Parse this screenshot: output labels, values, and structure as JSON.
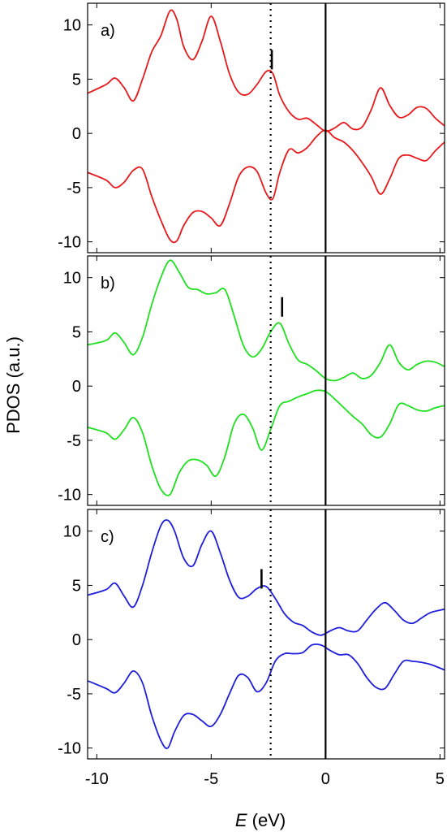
{
  "figure": {
    "ylabel": "PDOS (a.u.)",
    "xlabel_symbol": "E",
    "xlabel_unit": " (eV)"
  },
  "chart_data": [
    {
      "type": "line",
      "panel_label": "a)",
      "xlim": [
        -10.4,
        5.2
      ],
      "ylim": [
        -11,
        12
      ],
      "xticks": [
        -10,
        -5,
        0,
        5
      ],
      "yticks": [
        -10,
        -5,
        0,
        5,
        10
      ],
      "color": "#e8191b",
      "vline_solid_x": 0.0,
      "vline_dotted_x": -2.4,
      "marker": {
        "x": -2.35,
        "y": 6.8
      },
      "series": [
        {
          "x": [
            -10.4,
            -9.6,
            -9.2,
            -8.8,
            -8.4,
            -8.0,
            -7.6,
            -7.2,
            -6.8,
            -6.5,
            -6.2,
            -5.8,
            -5.4,
            -5.0,
            -4.6,
            -4.2,
            -3.8,
            -3.4,
            -3.0,
            -2.6,
            -2.3,
            -2.0,
            -1.6,
            -1.2,
            -0.8,
            -0.4,
            0.0,
            0.4,
            0.8,
            1.2,
            1.6,
            2.0,
            2.4,
            2.8,
            3.2,
            3.6,
            4.0,
            4.4,
            4.8,
            5.2
          ],
          "y": [
            3.7,
            4.5,
            5.1,
            4.2,
            3.0,
            5.0,
            7.5,
            9.0,
            11.3,
            10.5,
            8.0,
            6.8,
            8.5,
            10.8,
            8.5,
            5.5,
            3.8,
            3.6,
            4.5,
            5.7,
            5.5,
            3.5,
            2.0,
            1.3,
            1.4,
            0.8,
            0.2,
            0.5,
            1.0,
            0.4,
            0.6,
            2.2,
            4.2,
            2.6,
            1.5,
            1.7,
            2.4,
            2.3,
            1.4,
            0.7
          ]
        },
        {
          "x": [
            -10.4,
            -9.6,
            -9.2,
            -8.8,
            -8.4,
            -8.0,
            -7.6,
            -7.2,
            -6.8,
            -6.5,
            -6.2,
            -5.8,
            -5.4,
            -5.0,
            -4.6,
            -4.2,
            -3.8,
            -3.4,
            -3.0,
            -2.6,
            -2.3,
            -2.0,
            -1.6,
            -1.2,
            -0.8,
            -0.4,
            0.0,
            0.4,
            0.8,
            1.2,
            1.6,
            2.0,
            2.4,
            2.8,
            3.2,
            3.6,
            4.0,
            4.4,
            4.8,
            5.2
          ],
          "y": [
            -3.6,
            -4.3,
            -5.0,
            -4.5,
            -3.4,
            -3.3,
            -5.8,
            -8.0,
            -9.8,
            -9.9,
            -8.5,
            -7.3,
            -7.2,
            -7.8,
            -8.5,
            -6.5,
            -4.0,
            -3.1,
            -3.5,
            -5.5,
            -6.0,
            -3.6,
            -1.5,
            -1.8,
            -1.3,
            -0.3,
            0.3,
            -0.4,
            -0.8,
            -1.6,
            -2.7,
            -4.0,
            -5.6,
            -4.2,
            -2.3,
            -2.0,
            -2.3,
            -2.5,
            -1.6,
            -0.8
          ]
        }
      ]
    },
    {
      "type": "line",
      "panel_label": "b)",
      "xlim": [
        -10.4,
        5.2
      ],
      "ylim": [
        -11,
        12
      ],
      "xticks": [
        -10,
        -5,
        0,
        5
      ],
      "yticks": [
        -10,
        -5,
        0,
        5,
        10
      ],
      "color": "#1fe01f",
      "vline_solid_x": 0.0,
      "vline_dotted_x": -2.4,
      "marker": {
        "x": -1.9,
        "y": 7.3
      },
      "series": [
        {
          "x": [
            -10.4,
            -9.6,
            -9.2,
            -8.8,
            -8.4,
            -8.0,
            -7.6,
            -7.2,
            -6.8,
            -6.4,
            -6.0,
            -5.6,
            -5.2,
            -4.8,
            -4.4,
            -4.0,
            -3.6,
            -3.2,
            -2.8,
            -2.4,
            -2.0,
            -1.6,
            -1.2,
            -0.8,
            -0.4,
            0.0,
            0.4,
            0.8,
            1.2,
            1.6,
            2.0,
            2.4,
            2.8,
            3.2,
            3.6,
            4.0,
            4.4,
            4.8,
            5.2
          ],
          "y": [
            3.8,
            4.2,
            4.9,
            4.0,
            2.9,
            4.5,
            7.5,
            10.0,
            11.6,
            10.5,
            9.1,
            8.9,
            8.5,
            8.6,
            8.9,
            6.5,
            3.8,
            2.7,
            3.4,
            5.0,
            5.8,
            3.9,
            2.4,
            2.0,
            1.4,
            0.7,
            0.5,
            0.8,
            1.2,
            0.7,
            1.0,
            2.2,
            3.8,
            2.2,
            1.5,
            2.0,
            2.3,
            2.2,
            1.8
          ]
        },
        {
          "x": [
            -10.4,
            -9.6,
            -9.2,
            -8.8,
            -8.4,
            -8.0,
            -7.6,
            -7.2,
            -6.8,
            -6.4,
            -6.0,
            -5.6,
            -5.2,
            -4.8,
            -4.4,
            -4.0,
            -3.6,
            -3.2,
            -2.8,
            -2.4,
            -2.0,
            -1.6,
            -1.2,
            -0.8,
            -0.4,
            0.0,
            0.4,
            0.8,
            1.2,
            1.6,
            2.0,
            2.4,
            2.8,
            3.2,
            3.6,
            4.0,
            4.4,
            4.8,
            5.2
          ],
          "y": [
            -3.8,
            -4.3,
            -4.9,
            -4.0,
            -2.9,
            -4.3,
            -7.3,
            -9.5,
            -10.0,
            -8.0,
            -6.9,
            -6.8,
            -7.3,
            -8.3,
            -6.5,
            -3.5,
            -2.6,
            -3.8,
            -5.9,
            -4.0,
            -1.8,
            -1.4,
            -1.0,
            -0.7,
            -0.4,
            -0.5,
            -1.2,
            -2.0,
            -2.8,
            -3.5,
            -4.5,
            -4.7,
            -3.5,
            -1.7,
            -1.8,
            -2.2,
            -2.3,
            -2.0,
            -1.8
          ]
        }
      ]
    },
    {
      "type": "line",
      "panel_label": "c)",
      "xlim": [
        -10.4,
        5.2
      ],
      "ylim": [
        -11,
        12
      ],
      "xticks": [
        -10,
        -5,
        0,
        5
      ],
      "yticks": [
        -10,
        -5,
        0,
        5,
        10
      ],
      "color": "#1e1edc",
      "vline_solid_x": 0.0,
      "vline_dotted_x": -2.4,
      "marker": {
        "x": -2.8,
        "y": 5.6
      },
      "series": [
        {
          "x": [
            -10.4,
            -9.6,
            -9.2,
            -8.8,
            -8.4,
            -8.0,
            -7.6,
            -7.2,
            -6.9,
            -6.6,
            -6.2,
            -5.8,
            -5.4,
            -5.0,
            -4.6,
            -4.2,
            -3.8,
            -3.4,
            -3.0,
            -2.6,
            -2.2,
            -1.8,
            -1.4,
            -1.0,
            -0.6,
            -0.2,
            0.2,
            0.6,
            1.0,
            1.4,
            1.8,
            2.2,
            2.6,
            3.0,
            3.4,
            3.8,
            4.2,
            4.6,
            5.2
          ],
          "y": [
            4.1,
            4.6,
            5.2,
            4.0,
            3.0,
            5.0,
            8.0,
            10.5,
            11.0,
            10.0,
            7.5,
            6.8,
            8.8,
            10.0,
            8.0,
            5.5,
            3.9,
            4.0,
            4.7,
            4.9,
            3.8,
            2.4,
            1.6,
            1.3,
            0.7,
            0.4,
            0.8,
            1.1,
            0.8,
            0.8,
            1.8,
            2.8,
            3.4,
            2.7,
            1.8,
            1.5,
            2.0,
            2.5,
            2.8
          ]
        },
        {
          "x": [
            -10.4,
            -9.6,
            -9.2,
            -8.8,
            -8.4,
            -8.0,
            -7.6,
            -7.2,
            -6.9,
            -6.6,
            -6.2,
            -5.8,
            -5.4,
            -5.0,
            -4.6,
            -4.2,
            -3.8,
            -3.4,
            -3.0,
            -2.6,
            -2.2,
            -1.8,
            -1.4,
            -1.0,
            -0.6,
            -0.2,
            0.2,
            0.6,
            1.0,
            1.4,
            1.8,
            2.2,
            2.6,
            3.0,
            3.4,
            3.8,
            4.2,
            4.6,
            5.2
          ],
          "y": [
            -3.8,
            -4.5,
            -4.9,
            -4.0,
            -2.9,
            -4.0,
            -7.0,
            -9.3,
            -10.0,
            -8.5,
            -7.0,
            -6.9,
            -7.5,
            -8.0,
            -6.9,
            -5.0,
            -3.3,
            -3.5,
            -4.8,
            -4.0,
            -2.0,
            -1.3,
            -1.3,
            -1.2,
            -0.5,
            -0.5,
            -1.0,
            -1.4,
            -1.4,
            -2.2,
            -3.5,
            -4.4,
            -4.5,
            -3.2,
            -2.0,
            -2.0,
            -2.1,
            -2.3,
            -2.8
          ]
        }
      ]
    }
  ]
}
